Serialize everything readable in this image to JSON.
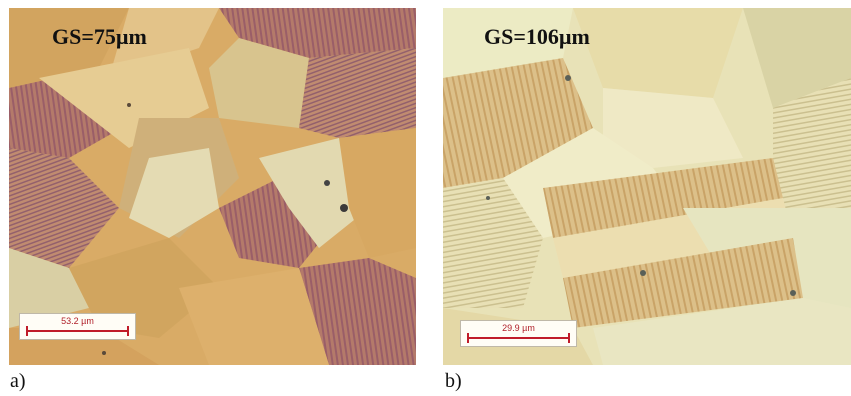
{
  "panels": [
    {
      "label": "a)",
      "grain_size": "GS=75µm",
      "scale_bar": "53.2 µm",
      "tint": "#d8ad6a"
    },
    {
      "label": "b)",
      "grain_size": "GS=106µm",
      "scale_bar": "29.9 µm",
      "tint": "#e3d9a6"
    }
  ]
}
